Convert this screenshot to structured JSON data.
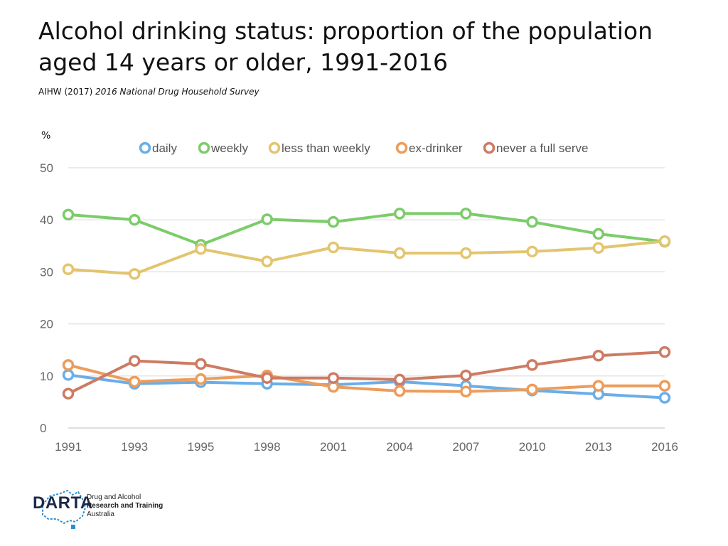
{
  "title": "Alcohol drinking status: proportion of the population aged 14 years or older, 1991-2016",
  "source": {
    "prefix": "AIHW (2017) ",
    "italic": "2016 National Drug Household Survey"
  },
  "unit_label": "%",
  "logo": {
    "word": "DARTA",
    "line1": "Drug and Alcohol",
    "line2": "Research and Training",
    "line3": "Australia"
  },
  "chart_data": {
    "type": "line",
    "x": [
      "1991",
      "1993",
      "1995",
      "1998",
      "2001",
      "2004",
      "2007",
      "2010",
      "2013",
      "2016"
    ],
    "ylim": [
      0,
      50
    ],
    "yticks": [
      0,
      10,
      20,
      30,
      40,
      50
    ],
    "grid": true,
    "legend_position": "top",
    "series": [
      {
        "name": "daily",
        "color": "#6aaee8",
        "values": [
          10.2,
          8.5,
          8.8,
          8.5,
          8.3,
          8.9,
          8.1,
          7.2,
          6.5,
          5.8
        ]
      },
      {
        "name": "weekly",
        "color": "#7ccc6a",
        "values": [
          41.0,
          40.0,
          35.2,
          40.1,
          39.6,
          41.2,
          41.2,
          39.6,
          37.3,
          35.8
        ]
      },
      {
        "name": "less than weekly",
        "color": "#e3c56f",
        "values": [
          30.5,
          29.6,
          34.4,
          32.0,
          34.7,
          33.6,
          33.6,
          33.9,
          34.6,
          35.9
        ]
      },
      {
        "name": "ex-drinker",
        "color": "#ec9c5b",
        "values": [
          12.1,
          8.9,
          9.4,
          10.1,
          7.9,
          7.1,
          7.0,
          7.4,
          8.1,
          8.1
        ]
      },
      {
        "name": "never a full serve",
        "color": "#cd7b62",
        "values": [
          6.6,
          12.9,
          12.3,
          9.6,
          9.6,
          9.3,
          10.1,
          12.1,
          13.9,
          14.6
        ]
      }
    ]
  }
}
